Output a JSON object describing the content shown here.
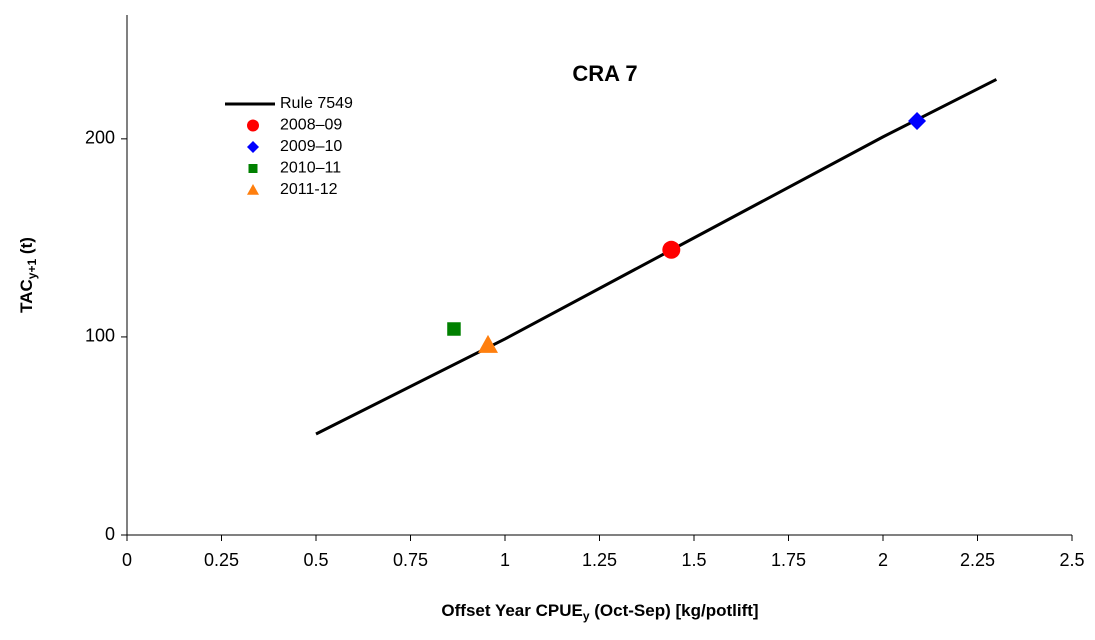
{
  "chart_data": {
    "type": "scatter",
    "title": "CRA 7",
    "x_label": [
      "Offset Year CPUE",
      "y",
      " (Oct-Sep) [kg/potlift]"
    ],
    "y_label": [
      "TAC",
      "y+1",
      " (t)"
    ],
    "xlim": [
      0,
      2.5
    ],
    "xticks": [
      0,
      0.25,
      0.5,
      0.75,
      1,
      1.25,
      1.5,
      1.75,
      2,
      2.25,
      2.5
    ],
    "ylim": [
      0,
      260
    ],
    "yticks": [
      0,
      100,
      200
    ],
    "series": [
      {
        "name": "Rule 7549",
        "color": "#000000",
        "marker": "line",
        "x": [
          0.5,
          1.0,
          1.5,
          2.0,
          2.3
        ],
        "values": [
          51,
          99,
          150,
          201,
          230
        ]
      },
      {
        "name": "2008–09",
        "color": "#ff0000",
        "marker": "circle",
        "x": [
          1.44
        ],
        "values": [
          144
        ]
      },
      {
        "name": "2009–10",
        "color": "#0000ff",
        "marker": "diamond",
        "x": [
          2.09
        ],
        "values": [
          209
        ]
      },
      {
        "name": "2010–11",
        "color": "#008000",
        "marker": "square",
        "x": [
          0.865
        ],
        "values": [
          104
        ]
      },
      {
        "name": "2011-12",
        "color": "#ff7f0e",
        "marker": "triangle",
        "x": [
          0.955
        ],
        "values": [
          96
        ]
      }
    ]
  }
}
